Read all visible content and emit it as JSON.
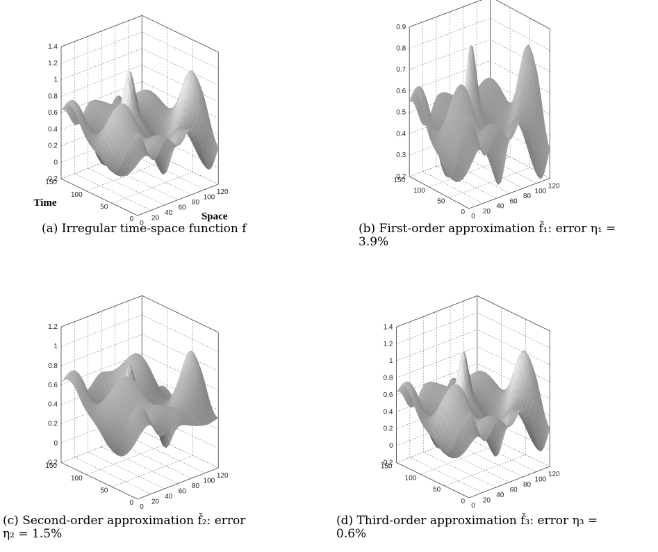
{
  "panels": [
    {
      "id": "a",
      "caption": [
        "(a) Irregular time-space function f"
      ]
    },
    {
      "id": "b",
      "caption": [
        "(b) First-order approximation f̌₁: error η₁ =",
        "3.9%"
      ]
    },
    {
      "id": "c",
      "caption": [
        "(c)  Second-order  approximation  f̌₂:  error",
        "η₂ = 1.5%"
      ]
    },
    {
      "id": "d",
      "caption": [
        "(d) Third-order approximation f̌₃: error η₃ =",
        "0.6%"
      ]
    }
  ],
  "chart_data": [
    {
      "type": "surface",
      "panel": "a",
      "xlabel": "Space",
      "ylabel": "Time",
      "zlabel": "",
      "xlim": [
        0,
        120
      ],
      "ylim": [
        0,
        150
      ],
      "zlim": [
        -0.2,
        1.4
      ],
      "xticks": [
        "0",
        "20",
        "40",
        "60",
        "80",
        "100",
        "120"
      ],
      "yticks": [
        "0",
        "50",
        "100",
        "150"
      ],
      "zticks": [
        "-0.2",
        "0",
        "0.2",
        "0.4",
        "0.6",
        "0.8",
        "1",
        "1.2",
        "1.4"
      ],
      "grid": true,
      "colormap": "gray"
    },
    {
      "type": "surface",
      "panel": "b",
      "xlabel": "",
      "ylabel": "",
      "zlabel": "",
      "xlim": [
        0,
        120
      ],
      "ylim": [
        0,
        150
      ],
      "zlim": [
        0.2,
        0.9
      ],
      "xticks": [
        "0",
        "20",
        "40",
        "60",
        "80",
        "100",
        "120"
      ],
      "yticks": [
        "0",
        "50",
        "100",
        "150"
      ],
      "zticks": [
        "0.2",
        "0.3",
        "0.4",
        "0.5",
        "0.6",
        "0.7",
        "0.8",
        "0.9"
      ],
      "grid": true,
      "colormap": "gray"
    },
    {
      "type": "surface",
      "panel": "c",
      "xlabel": "",
      "ylabel": "",
      "zlabel": "",
      "xlim": [
        0,
        120
      ],
      "ylim": [
        0,
        150
      ],
      "zlim": [
        -0.2,
        1.2
      ],
      "xticks": [
        "0",
        "20",
        "40",
        "60",
        "80",
        "100",
        "120"
      ],
      "yticks": [
        "0",
        "50",
        "100",
        "150"
      ],
      "zticks": [
        "-0.2",
        "0",
        "0.2",
        "0.4",
        "0.6",
        "0.8",
        "1",
        "1.2"
      ],
      "grid": true,
      "colormap": "gray"
    },
    {
      "type": "surface",
      "panel": "d",
      "xlabel": "",
      "ylabel": "",
      "zlabel": "",
      "xlim": [
        0,
        120
      ],
      "ylim": [
        0,
        150
      ],
      "zlim": [
        -0.2,
        1.4
      ],
      "xticks": [
        "0",
        "20",
        "40",
        "60",
        "80",
        "100",
        "120"
      ],
      "yticks": [
        "0",
        "50",
        "100",
        "150"
      ],
      "zticks": [
        "-0.2",
        "0",
        "0.2",
        "0.4",
        "0.6",
        "0.8",
        "1",
        "1.2",
        "1.4"
      ],
      "grid": true,
      "colormap": "gray"
    }
  ]
}
